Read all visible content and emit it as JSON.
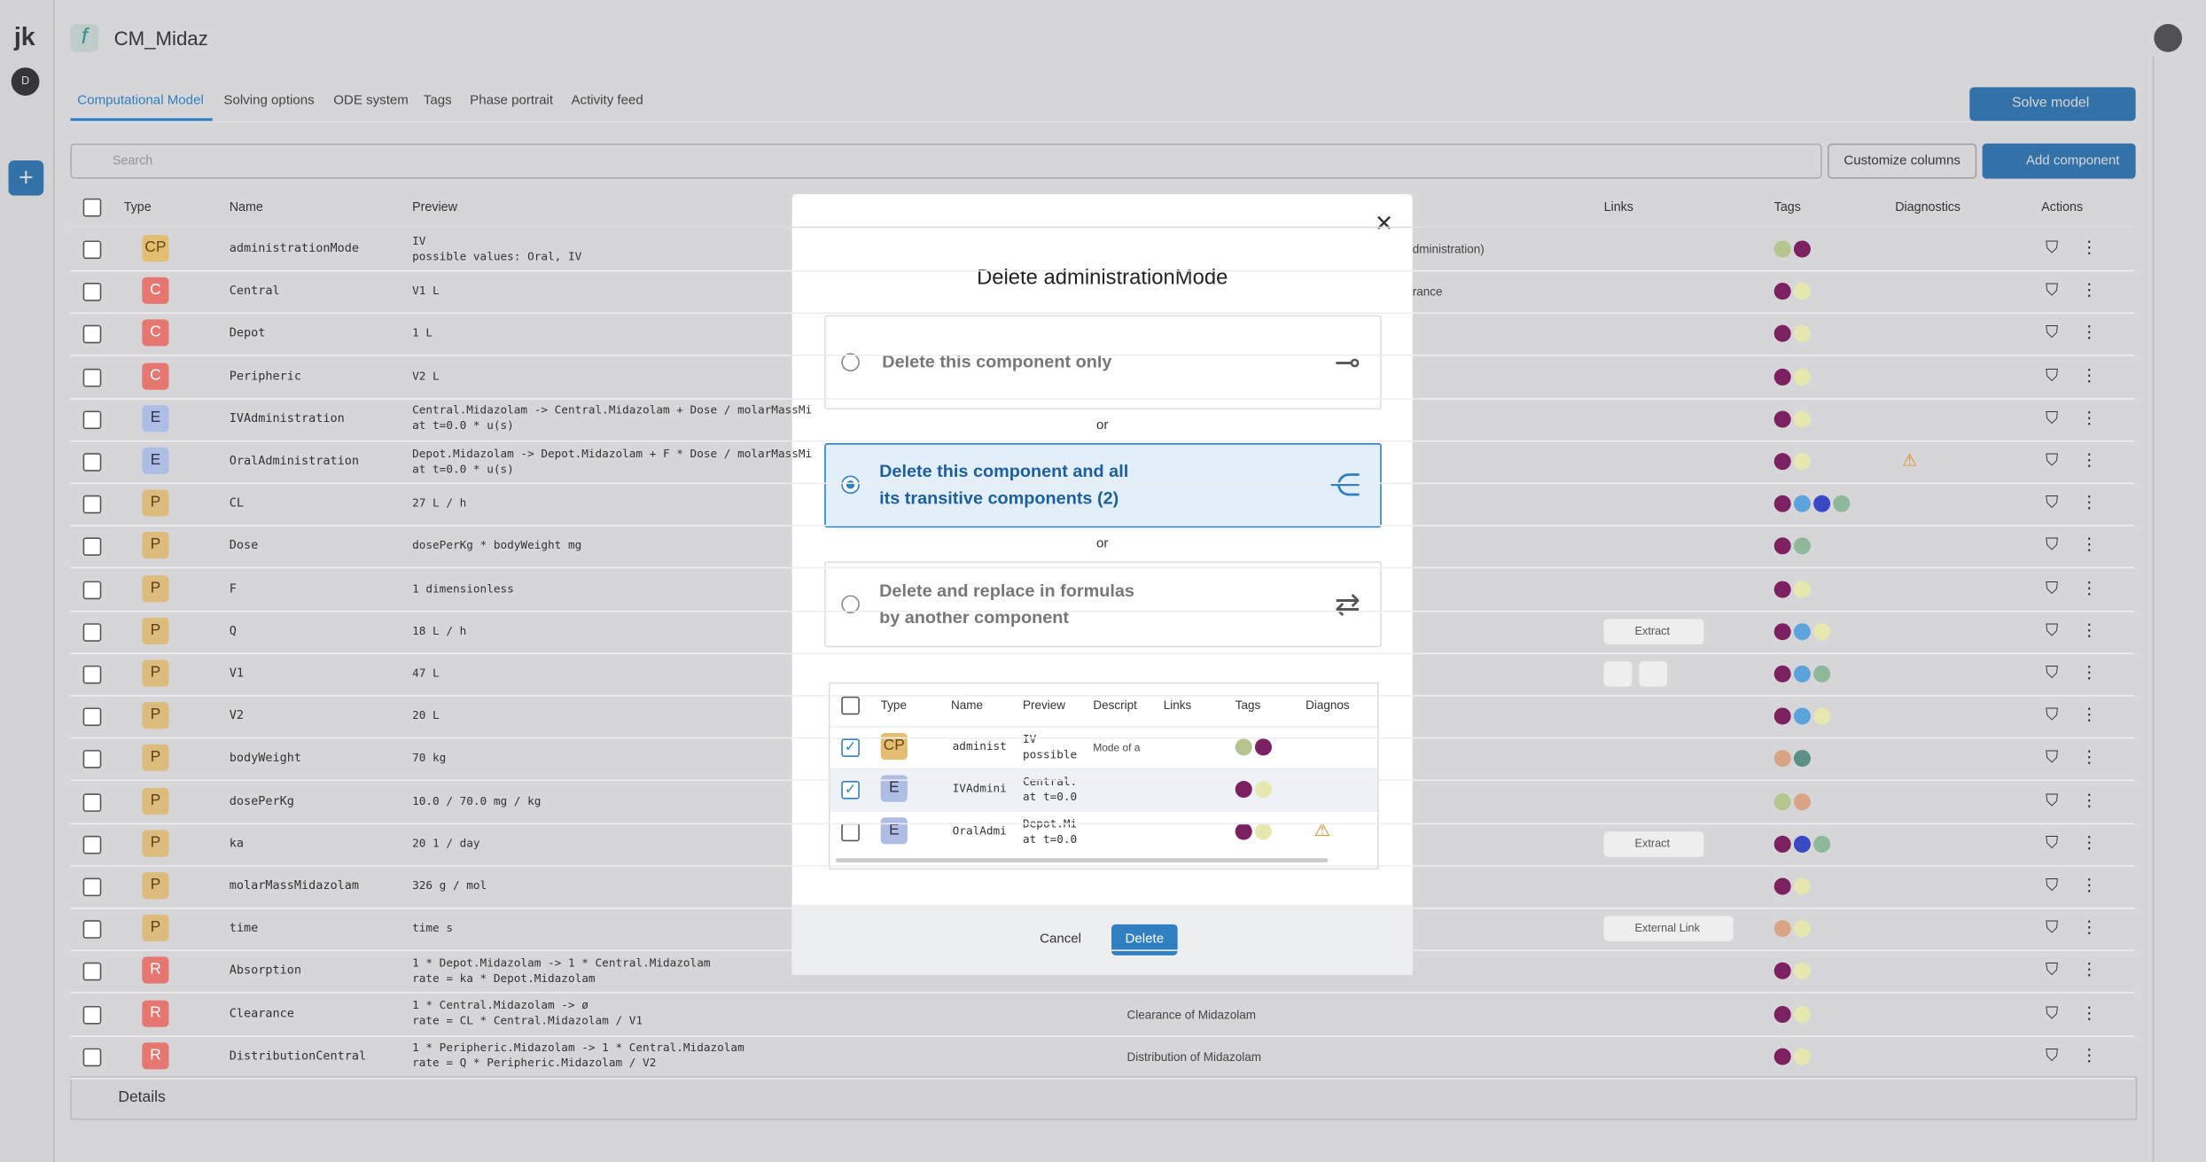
{
  "header": {
    "logo": "jk",
    "title": "CM_Midaz",
    "avatar": "D"
  },
  "tabs": {
    "items": [
      "Computational Model",
      "Solving options",
      "ODE system",
      "Tags",
      "Phase portrait",
      "Activity feed"
    ],
    "active": 0
  },
  "toolbar": {
    "search": "Search",
    "solve": "Solve model",
    "customize": "Customize columns",
    "add": "Add component"
  },
  "table": {
    "columns": [
      "Type",
      "Name",
      "Preview",
      "Links",
      "Tags",
      "Diagnostics",
      "Actions"
    ],
    "rows": [
      {
        "type": "CP",
        "name": "administrationMode",
        "preview": [
          "IV",
          "possible values: Oral, IV"
        ],
        "description": "dministration)",
        "tags": [
          "#b6c48e",
          "#7b2162"
        ]
      },
      {
        "type": "C",
        "name": "Central",
        "preview": [
          "V1 L"
        ],
        "description": "rance",
        "tags": [
          "#7b2162",
          "#e6e8b0"
        ]
      },
      {
        "type": "C",
        "name": "Depot",
        "preview": [
          "1 L"
        ],
        "tags": [
          "#7b2162",
          "#e6e8b0"
        ]
      },
      {
        "type": "C",
        "name": "Peripheric",
        "preview": [
          "V2 L"
        ],
        "tags": [
          "#7b2162",
          "#e6e8b0"
        ]
      },
      {
        "type": "E",
        "name": "IVAdministration",
        "preview": [
          "Central.Midazolam -> Central.Midazolam + Dose / molarMassMi",
          "at t=0.0 * u(s)"
        ],
        "tags": [
          "#7b2162",
          "#e6e8b0"
        ]
      },
      {
        "type": "E",
        "name": "OralAdministration",
        "preview": [
          "Depot.Midazolam -> Depot.Midazolam + F * Dose / molarMassMi",
          "at t=0.0 * u(s)"
        ],
        "tags": [
          "#7b2162",
          "#e6e8b0"
        ],
        "warning": true
      },
      {
        "type": "P",
        "name": "CL",
        "preview": [
          "27 L / h"
        ],
        "tags": [
          "#7b2162",
          "#5ca3de",
          "#3b48c4",
          "#8fb89a"
        ]
      },
      {
        "type": "P",
        "name": "Dose",
        "preview": [
          "dosePerKg * bodyWeight mg"
        ],
        "tags": [
          "#7b2162",
          "#8fb89a"
        ]
      },
      {
        "type": "P",
        "name": "F",
        "preview": [
          "1 dimensionless"
        ],
        "tags": [
          "#7b2162",
          "#e6e8b0"
        ]
      },
      {
        "type": "P",
        "name": "Q",
        "preview": [
          "18 L / h"
        ],
        "link": "Extract",
        "tags": [
          "#7b2162",
          "#5ca3de",
          "#e6e8b0"
        ]
      },
      {
        "type": "P",
        "name": "V1",
        "preview": [
          "47 L"
        ],
        "bookmarks": true,
        "tags": [
          "#7b2162",
          "#5ca3de",
          "#8fb89a"
        ]
      },
      {
        "type": "P",
        "name": "V2",
        "preview": [
          "20 L"
        ],
        "tags": [
          "#7b2162",
          "#5ca3de",
          "#e6e8b0"
        ]
      },
      {
        "type": "P",
        "name": "bodyWeight",
        "preview": [
          "70 kg"
        ],
        "tags": [
          "#d9a484",
          "#5c8f86"
        ]
      },
      {
        "type": "P",
        "name": "dosePerKg",
        "preview": [
          "10.0 / 70.0 mg / kg"
        ],
        "tags": [
          "#b6c48e",
          "#d9a484"
        ]
      },
      {
        "type": "P",
        "name": "ka",
        "preview": [
          "20 1 / day"
        ],
        "link": "Extract",
        "tags": [
          "#7b2162",
          "#3b48c4",
          "#8fb89a"
        ]
      },
      {
        "type": "P",
        "name": "molarMassMidazolam",
        "preview": [
          "326 g / mol"
        ],
        "tags": [
          "#7b2162",
          "#e6e8b0"
        ]
      },
      {
        "type": "P",
        "name": "time",
        "preview": [
          "time s"
        ],
        "link": "External Link",
        "tags": [
          "#d9a484",
          "#e6e8b0"
        ]
      },
      {
        "type": "R",
        "name": "Absorption",
        "preview": [
          "1 * Depot.Midazolam -> 1 * Central.Midazolam",
          "rate = ka * Depot.Midazolam"
        ],
        "tags": [
          "#7b2162",
          "#e6e8b0"
        ]
      },
      {
        "type": "R",
        "name": "Clearance",
        "preview": [
          "1 * Central.Midazolam -> ø",
          "rate = CL * Central.Midazolam / V1"
        ],
        "description": "Clearance of Midazolam",
        "tags": [
          "#7b2162",
          "#e6e8b0"
        ]
      },
      {
        "type": "R",
        "name": "DistributionCentral",
        "preview": [
          "1 * Peripheric.Midazolam -> 1 * Central.Midazolam",
          "rate = Q * Peripheric.Midazolam / V2"
        ],
        "description": "Distribution of Midazolam",
        "tags": [
          "#7b2162",
          "#e6e8b0"
        ]
      }
    ]
  },
  "details": "Details",
  "modal": {
    "title": "Delete administrationMode",
    "or": "or",
    "options": [
      {
        "lines": [
          "Delete this component only"
        ]
      },
      {
        "lines": [
          "Delete this component and all",
          "its transitive components (2)"
        ],
        "selected": true
      },
      {
        "lines": [
          "Delete and replace in formulas",
          "by another component"
        ]
      }
    ],
    "columns": [
      "Type",
      "Name",
      "Preview",
      "Descript",
      "Links",
      "Tags",
      "Diagnos"
    ],
    "rows": [
      {
        "type": "CP",
        "name": "administ",
        "preview": [
          "IV",
          "possible"
        ],
        "description": "Mode of a",
        "checked": true,
        "tags": [
          "#b6c48e",
          "#7b2162"
        ]
      },
      {
        "type": "E",
        "name": "IVAdmini",
        "preview": [
          "Central.",
          "at t=0.0"
        ],
        "checked": true,
        "tags": [
          "#7b2162",
          "#e6e8b0"
        ]
      },
      {
        "type": "E",
        "name": "OralAdmi",
        "preview": [
          "Depot.Mi",
          "at t=0.0"
        ],
        "checked": false,
        "tags": [
          "#7b2162",
          "#e6e8b0"
        ],
        "warning": true
      }
    ],
    "cancel": "Cancel",
    "delete": "Delete"
  }
}
